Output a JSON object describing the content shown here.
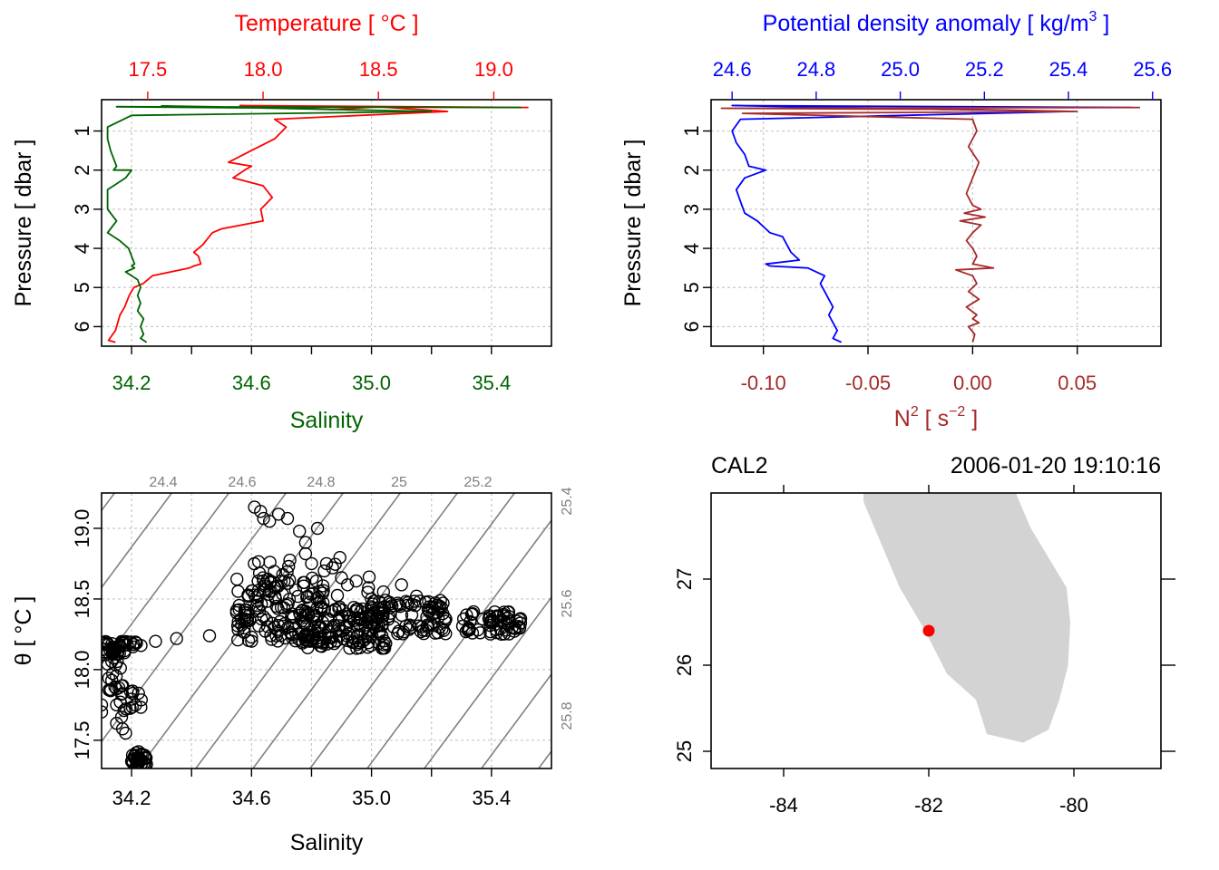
{
  "chart_data": [
    {
      "type": "line",
      "name": "salinity-temperature-profile",
      "top_axis": {
        "label": "Temperature [ °C ]",
        "color": "#ff0000",
        "range": [
          17.3,
          19.25
        ],
        "ticks": [
          17.5,
          18.0,
          18.5,
          19.0
        ],
        "tick_labels": [
          "17.5",
          "18.0",
          "18.5",
          "19.0"
        ]
      },
      "bottom_axis": {
        "label": "Salinity",
        "color": "#006400",
        "range": [
          34.1,
          35.6
        ],
        "ticks": [
          34.2,
          34.6,
          35.0,
          35.4
        ],
        "tick_labels": [
          "34.2",
          "34.6",
          "35.0",
          "35.4"
        ],
        "minor_ticks": [
          34.4,
          34.8,
          35.2
        ]
      },
      "y_axis": {
        "label": "Pressure [ dbar ]",
        "range": [
          6.5,
          0.2
        ],
        "reversed": true,
        "ticks": [
          1,
          2,
          3,
          4,
          5,
          6
        ],
        "tick_labels": [
          "1",
          "2",
          "3",
          "4",
          "5",
          "6"
        ]
      },
      "series": [
        {
          "name": "Temperature",
          "color": "#ff0000",
          "x": [
            19.15,
            17.9,
            18.3,
            18.5,
            18.8,
            18.05,
            18.1,
            18.05,
            17.95,
            17.85,
            17.95,
            17.92,
            17.87,
            18.0,
            18.04,
            17.99,
            18.0,
            17.82,
            17.78,
            17.74,
            17.7,
            17.72,
            17.73,
            17.7,
            17.68,
            17.52,
            17.48,
            17.44,
            17.42,
            17.4,
            17.38,
            17.37,
            17.36,
            17.33,
            17.36
          ],
          "y": [
            0.4,
            0.35,
            0.45,
            0.38,
            0.5,
            0.7,
            0.9,
            1.2,
            1.5,
            1.8,
            1.9,
            2.0,
            2.2,
            2.4,
            2.7,
            3.0,
            3.3,
            3.5,
            3.6,
            3.9,
            4.1,
            4.2,
            4.4,
            4.45,
            4.5,
            4.7,
            4.9,
            5.0,
            5.2,
            5.5,
            5.7,
            5.9,
            6.1,
            6.35,
            6.4
          ]
        },
        {
          "name": "Salinity",
          "color": "#006400",
          "x": [
            35.5,
            34.15,
            34.8,
            34.3,
            35.2,
            34.2,
            34.12,
            34.12,
            34.13,
            34.14,
            34.15,
            34.14,
            34.2,
            34.18,
            34.12,
            34.12,
            34.15,
            34.12,
            34.16,
            34.19,
            34.2,
            34.21,
            34.2,
            34.21,
            34.18,
            34.22,
            34.23,
            34.22,
            34.23,
            34.22,
            34.24,
            34.23,
            34.24,
            34.23,
            34.24,
            34.25
          ],
          "y": [
            0.4,
            0.38,
            0.42,
            0.36,
            0.5,
            0.6,
            0.9,
            1.2,
            1.5,
            1.7,
            1.9,
            2.0,
            2.0,
            2.2,
            2.5,
            3.0,
            3.3,
            3.6,
            3.8,
            4.0,
            4.2,
            4.4,
            4.45,
            4.5,
            4.6,
            4.8,
            5.0,
            5.2,
            5.4,
            5.6,
            5.8,
            6.0,
            6.2,
            6.3,
            6.35,
            6.4
          ]
        }
      ]
    },
    {
      "type": "line",
      "name": "density-n2-profile",
      "top_axis": {
        "label_main": "Potential density anomaly [ kg/m",
        "label_sup": "3",
        "label_end": " ]",
        "color": "#0000ff",
        "range": [
          24.55,
          25.62
        ],
        "ticks": [
          24.6,
          24.8,
          25.0,
          25.2,
          25.4,
          25.6
        ],
        "tick_labels": [
          "24.6",
          "24.8",
          "25.0",
          "25.2",
          "25.4",
          "25.6"
        ]
      },
      "bottom_axis": {
        "label_main": "N",
        "label_sup1": "2",
        "label_mid": " [ s",
        "label_sup2": "−2",
        "label_end": " ]",
        "color": "#a52a2a",
        "range": [
          -0.125,
          0.09
        ],
        "ticks": [
          -0.1,
          -0.05,
          0.0,
          0.05
        ],
        "tick_labels": [
          "-0.10",
          "-0.05",
          "0.00",
          "0.05"
        ]
      },
      "y_axis": {
        "label": "Pressure [ dbar ]",
        "range": [
          6.5,
          0.2
        ],
        "reversed": true,
        "ticks": [
          1,
          2,
          3,
          4,
          5,
          6
        ],
        "tick_labels": [
          "1",
          "2",
          "3",
          "4",
          "5",
          "6"
        ]
      },
      "series": [
        {
          "name": "Potential density anomaly",
          "color": "#0000ff",
          "x": [
            25.55,
            24.6,
            25.1,
            24.75,
            25.4,
            24.62,
            24.6,
            24.61,
            24.63,
            24.64,
            24.68,
            24.63,
            24.61,
            24.62,
            24.63,
            24.66,
            24.68,
            24.69,
            24.72,
            24.73,
            24.74,
            24.76,
            24.68,
            24.69,
            24.78,
            24.82,
            24.81,
            24.82,
            24.83,
            24.84,
            24.83,
            24.84,
            24.85,
            24.84,
            24.86
          ],
          "y": [
            0.4,
            0.35,
            0.45,
            0.38,
            0.5,
            0.7,
            1.0,
            1.3,
            1.6,
            1.9,
            2.0,
            2.2,
            2.5,
            2.8,
            3.1,
            3.3,
            3.5,
            3.6,
            3.7,
            3.9,
            4.1,
            4.3,
            4.4,
            4.45,
            4.5,
            4.7,
            4.9,
            5.1,
            5.3,
            5.5,
            5.7,
            5.9,
            6.1,
            6.3,
            6.4
          ]
        },
        {
          "name": "N2",
          "color": "#a52a2a",
          "x": [
            0.08,
            -0.12,
            0.0,
            0.05,
            -0.11,
            0.0,
            0.002,
            -0.002,
            0.003,
            0.0,
            -0.003,
            0.0,
            0.004,
            -0.004,
            0.006,
            -0.006,
            0.004,
            0.0,
            -0.003,
            0.0,
            0.002,
            0.0,
            0.01,
            -0.008,
            0.0,
            0.002,
            -0.002,
            0.003,
            -0.003,
            0.002,
            0.0,
            0.003,
            -0.002,
            0.001,
            0.0
          ],
          "y": [
            0.4,
            0.42,
            0.45,
            0.5,
            0.55,
            0.7,
            1.0,
            1.4,
            1.8,
            2.2,
            2.6,
            2.9,
            3.0,
            3.1,
            3.2,
            3.3,
            3.4,
            3.6,
            3.8,
            4.0,
            4.2,
            4.4,
            4.5,
            4.55,
            4.7,
            4.9,
            5.1,
            5.3,
            5.5,
            5.7,
            5.8,
            5.9,
            6.0,
            6.2,
            6.4
          ]
        }
      ]
    },
    {
      "type": "scatter",
      "name": "ts-diagram",
      "x_axis": {
        "label": "Salinity",
        "range": [
          34.1,
          35.6
        ],
        "ticks": [
          34.2,
          34.6,
          35.0,
          35.4
        ],
        "tick_labels": [
          "34.2",
          "34.6",
          "35.0",
          "35.4"
        ],
        "minor_ticks": [
          34.4,
          34.8,
          35.2
        ]
      },
      "y_axis": {
        "label": "θ [ °C ]",
        "range": [
          17.3,
          19.25
        ],
        "ticks": [
          17.5,
          18.0,
          18.5,
          19.0
        ],
        "tick_labels": [
          "17.5",
          "18.0",
          "18.5",
          "19.0"
        ]
      },
      "isopycnal_labels_top": [
        "24.4",
        "24.6",
        "24.8",
        "25",
        "25.2"
      ],
      "isopycnal_labels_right": [
        "25.4",
        "25.6",
        "25.8"
      ],
      "point_clusters": [
        {
          "x": [
            34.1,
            34.18
          ],
          "y": [
            18.1,
            18.2
          ],
          "n": 40
        },
        {
          "x": [
            34.16,
            34.24
          ],
          "y": [
            18.16,
            18.2
          ],
          "n": 15
        },
        {
          "x": [
            34.12,
            34.18
          ],
          "y": [
            17.85,
            18.1
          ],
          "n": 18
        },
        {
          "x": [
            34.16,
            34.24
          ],
          "y": [
            17.65,
            17.85
          ],
          "n": 16
        },
        {
          "x": [
            34.2,
            34.25
          ],
          "y": [
            17.32,
            17.42
          ],
          "n": 30
        },
        {
          "x": [
            34.55,
            34.85
          ],
          "y": [
            18.2,
            18.65
          ],
          "n": 120
        },
        {
          "x": [
            34.75,
            35.05
          ],
          "y": [
            18.15,
            18.45
          ],
          "n": 150
        },
        {
          "x": [
            35.0,
            35.25
          ],
          "y": [
            18.25,
            18.5
          ],
          "n": 90
        },
        {
          "x": [
            35.3,
            35.5
          ],
          "y": [
            18.25,
            18.42
          ],
          "n": 60
        },
        {
          "x": [
            34.6,
            35.0
          ],
          "y": [
            18.5,
            18.8
          ],
          "n": 30
        }
      ],
      "points": [
        [
          34.1,
          17.75
        ],
        [
          34.1,
          17.7
        ],
        [
          34.15,
          17.62
        ],
        [
          34.17,
          17.58
        ],
        [
          34.18,
          17.55
        ],
        [
          34.15,
          17.75
        ],
        [
          34.2,
          17.35
        ],
        [
          34.22,
          17.33
        ],
        [
          34.25,
          17.33
        ],
        [
          34.28,
          18.2
        ],
        [
          34.35,
          18.22
        ],
        [
          34.46,
          18.24
        ],
        [
          34.6,
          18.23
        ],
        [
          34.61,
          19.15
        ],
        [
          34.63,
          19.12
        ],
        [
          34.64,
          19.07
        ],
        [
          34.66,
          19.05
        ],
        [
          34.69,
          19.1
        ],
        [
          34.72,
          19.07
        ],
        [
          34.76,
          18.98
        ],
        [
          34.78,
          18.9
        ],
        [
          34.82,
          19.0
        ],
        [
          34.78,
          18.82
        ],
        [
          34.8,
          18.75
        ],
        [
          34.85,
          18.75
        ],
        [
          34.87,
          18.72
        ],
        [
          34.9,
          18.65
        ],
        [
          34.92,
          18.6
        ],
        [
          34.99,
          18.58
        ],
        [
          35.04,
          18.55
        ],
        [
          35.1,
          18.6
        ],
        [
          35.15,
          18.52
        ],
        [
          35.19,
          18.48
        ],
        [
          35.0,
          18.5
        ],
        [
          35.4,
          18.35
        ]
      ]
    },
    {
      "type": "map",
      "name": "station-map",
      "title_left": "CAL2",
      "title_right": "2006-01-20 19:10:16",
      "x_axis": {
        "range": [
          -85.0,
          -78.8
        ],
        "ticks": [
          -84,
          -82,
          -80
        ],
        "tick_labels": [
          "-84",
          "-82",
          "-80"
        ]
      },
      "y_axis": {
        "range": [
          24.8,
          28.0
        ],
        "ticks": [
          25,
          26,
          27
        ],
        "tick_labels": [
          "25",
          "26",
          "27"
        ]
      },
      "land_color": "#d3d3d3",
      "land_polygon": [
        [
          -82.9,
          28.0
        ],
        [
          -80.8,
          28.0
        ],
        [
          -80.6,
          27.6
        ],
        [
          -80.1,
          26.9
        ],
        [
          -80.05,
          26.5
        ],
        [
          -80.08,
          26.0
        ],
        [
          -80.2,
          25.6
        ],
        [
          -80.35,
          25.25
        ],
        [
          -80.7,
          25.1
        ],
        [
          -81.2,
          25.2
        ],
        [
          -81.35,
          25.6
        ],
        [
          -81.75,
          25.9
        ],
        [
          -82.05,
          26.4
        ],
        [
          -82.4,
          26.9
        ],
        [
          -82.7,
          27.5
        ],
        [
          -82.9,
          27.9
        ]
      ],
      "station": {
        "lon": -82.0,
        "lat": 26.4,
        "color": "#ff0000"
      }
    }
  ]
}
